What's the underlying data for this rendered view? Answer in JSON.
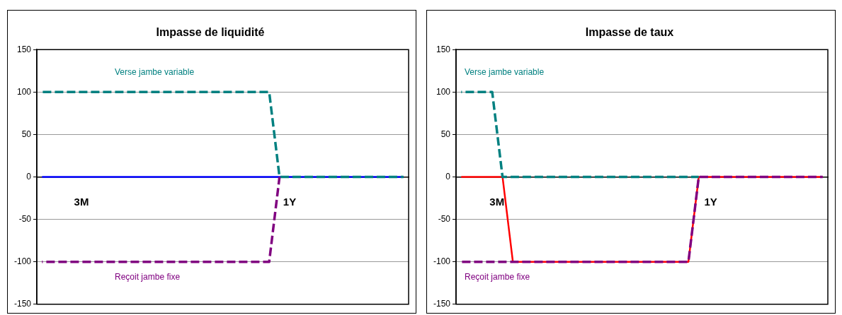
{
  "chart_data": [
    {
      "type": "line",
      "title": "Impasse de liquidité",
      "categories": [
        null,
        null,
        null,
        null,
        null,
        null,
        null,
        null,
        null,
        null,
        null,
        null,
        null,
        null,
        null,
        null,
        null,
        null,
        null,
        null,
        null,
        null,
        null,
        null,
        null,
        null,
        null,
        null,
        null,
        null,
        null,
        null,
        null,
        null,
        null,
        null
      ],
      "series": [
        {
          "color": "#0000ff",
          "line_style": "solid",
          "values": [
            0,
            0,
            0,
            0,
            0,
            0,
            0,
            0,
            0,
            0,
            0,
            0,
            0,
            0,
            0,
            0,
            0,
            0,
            0,
            0,
            0,
            0,
            0,
            0,
            0,
            0,
            0,
            0,
            0,
            0,
            0,
            0,
            0,
            0,
            0,
            0
          ]
        },
        {
          "name": "Verse jambe variable",
          "color": "#008080",
          "line_style": "dashed",
          "values": [
            100,
            100,
            100,
            100,
            100,
            100,
            100,
            100,
            100,
            100,
            100,
            100,
            100,
            100,
            100,
            100,
            100,
            100,
            100,
            100,
            100,
            100,
            100,
            0,
            0,
            0,
            0,
            0,
            0,
            0,
            0,
            0,
            0,
            0,
            0,
            0
          ]
        },
        {
          "name": "Reçoit jambe fixe",
          "color": "#800080",
          "line_style": "dashed",
          "values": [
            -100,
            -100,
            -100,
            -100,
            -100,
            -100,
            -100,
            -100,
            -100,
            -100,
            -100,
            -100,
            -100,
            -100,
            -100,
            -100,
            -100,
            -100,
            -100,
            -100,
            -100,
            -100,
            -100,
            0,
            null,
            null,
            null,
            null,
            null,
            null,
            null,
            null,
            null,
            null,
            null,
            null
          ]
        }
      ],
      "ylim": [
        -150,
        150
      ],
      "yticks": [
        -150,
        -100,
        -50,
        0,
        50,
        100,
        150
      ],
      "grid": "y",
      "marker": "none",
      "legend": false,
      "tick_labels": "y",
      "annotations": [
        "3M",
        "1Y"
      ]
    },
    {
      "type": "line",
      "title": "Impasse de taux",
      "categories": [
        null,
        null,
        null,
        null,
        null,
        null,
        null,
        null,
        null,
        null,
        null,
        null,
        null,
        null,
        null,
        null,
        null,
        null,
        null,
        null,
        null,
        null,
        null,
        null,
        null,
        null,
        null,
        null,
        null,
        null,
        null,
        null,
        null,
        null,
        null,
        null
      ],
      "series": [
        {
          "color": "#ff0000",
          "line_style": "solid",
          "values": [
            0,
            0,
            0,
            0,
            0,
            -100,
            -100,
            -100,
            -100,
            -100,
            -100,
            -100,
            -100,
            -100,
            -100,
            -100,
            -100,
            -100,
            -100,
            -100,
            -100,
            -100,
            -100,
            0,
            0,
            0,
            0,
            0,
            0,
            0,
            0,
            0,
            0,
            0,
            0,
            0
          ]
        },
        {
          "name": "Verse jambe variable",
          "color": "#008080",
          "line_style": "dashed",
          "values": [
            100,
            100,
            100,
            100,
            0,
            0,
            0,
            0,
            0,
            0,
            0,
            0,
            0,
            0,
            0,
            0,
            0,
            0,
            0,
            0,
            0,
            0,
            0,
            0,
            null,
            null,
            null,
            null,
            null,
            null,
            null,
            null,
            null,
            null,
            null,
            null
          ]
        },
        {
          "name": "Reçoit jambe fixe",
          "color": "#800080",
          "line_style": "dashed",
          "values": [
            -100,
            -100,
            -100,
            -100,
            -100,
            -100,
            -100,
            -100,
            -100,
            -100,
            -100,
            -100,
            -100,
            -100,
            -100,
            -100,
            -100,
            -100,
            -100,
            -100,
            -100,
            -100,
            -100,
            0,
            0,
            0,
            0,
            0,
            0,
            0,
            0,
            0,
            0,
            0,
            0,
            0
          ]
        }
      ],
      "ylim": [
        -150,
        150
      ],
      "yticks": [
        -150,
        -100,
        -50,
        0,
        50,
        100,
        150
      ],
      "grid": "y",
      "marker": "none",
      "legend": false,
      "tick_labels": "y",
      "annotations": [
        "3M",
        "1Y"
      ]
    }
  ]
}
